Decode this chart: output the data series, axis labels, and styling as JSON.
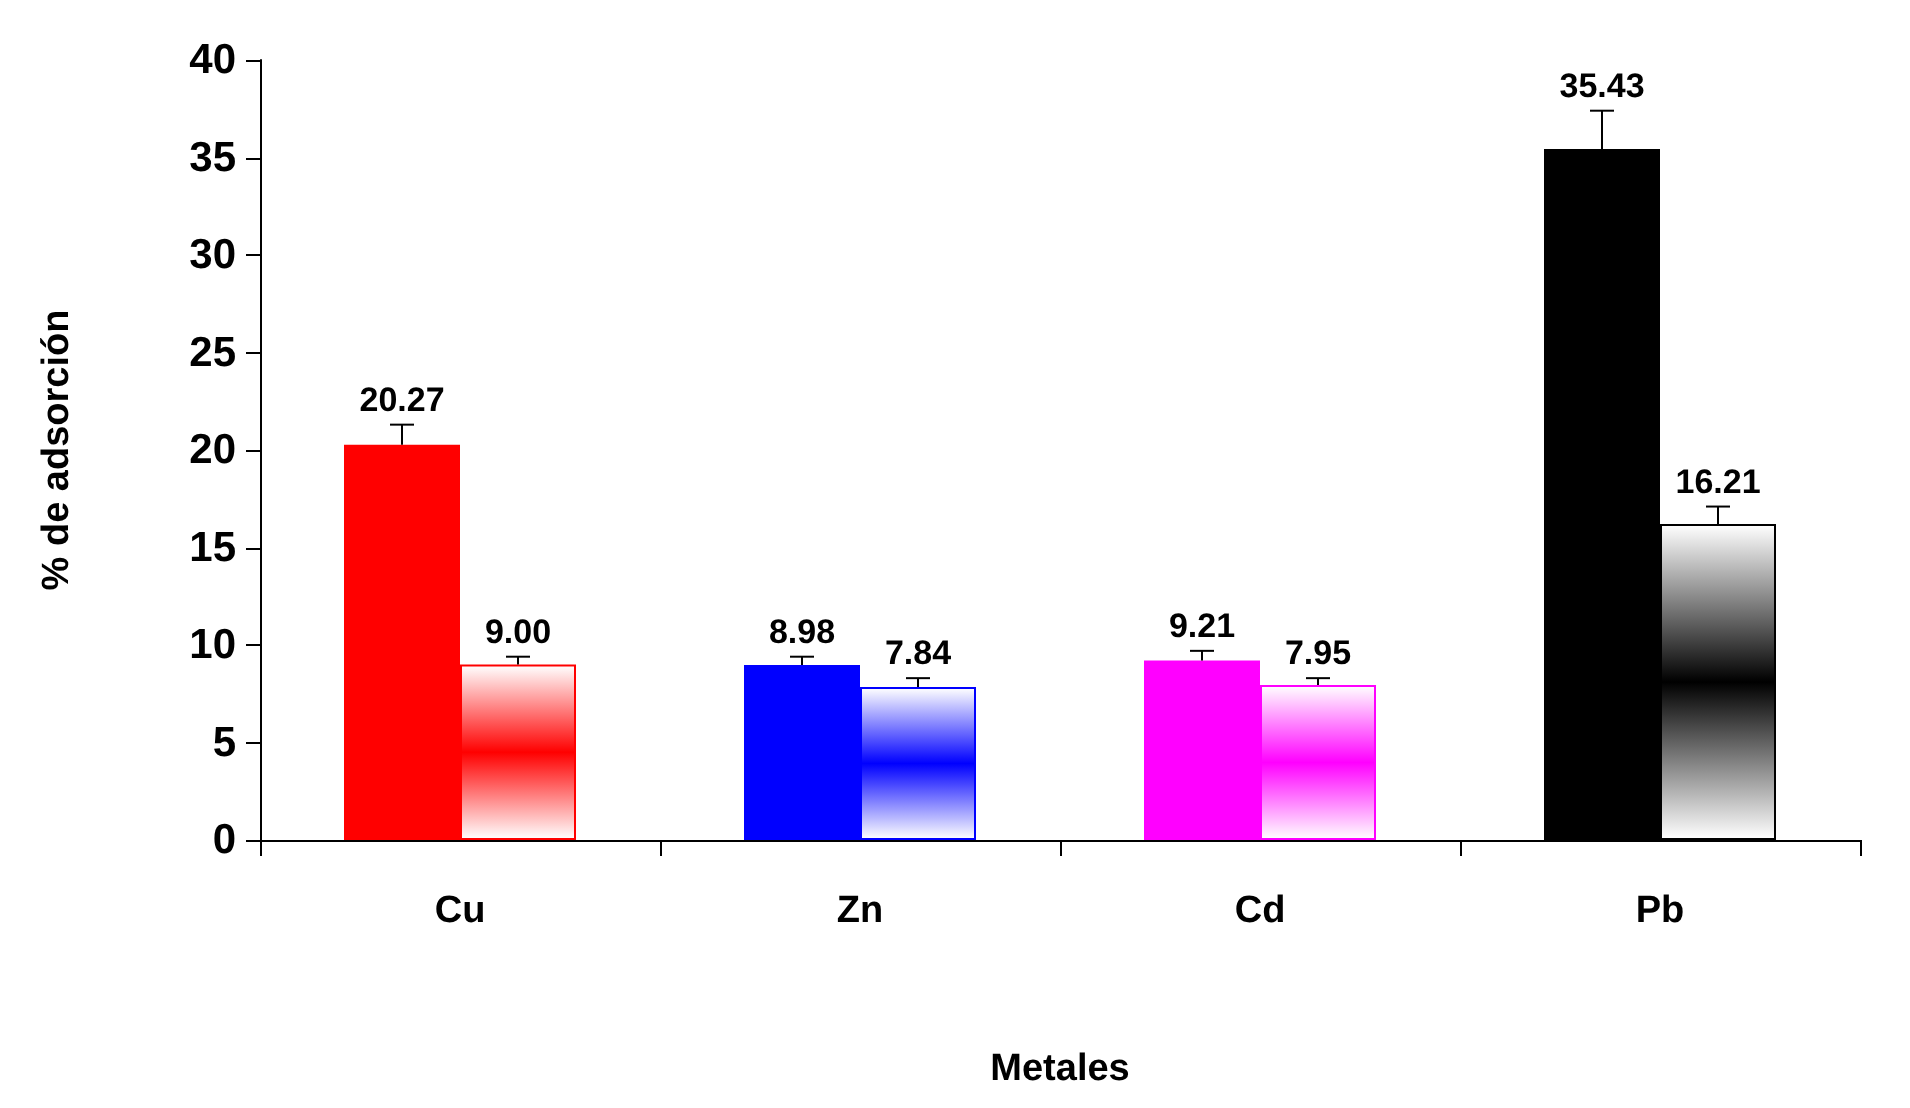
{
  "chart_data": {
    "type": "bar",
    "xlabel": "Metales",
    "ylabel": "% de adsorción",
    "categories": [
      "Cu",
      "Zn",
      "Cd",
      "Pb"
    ],
    "series": [
      {
        "colors": [
          "#ff0000",
          "#0000ff",
          "#ff00ff",
          "#000000"
        ],
        "values": [
          20.27,
          8.98,
          9.21,
          35.43
        ],
        "value_labels": [
          "20.27",
          "8.98",
          "9.21",
          "35.43"
        ],
        "errors": [
          [
            20.27,
            21.3
          ],
          [
            8.98,
            9.4
          ],
          [
            9.21,
            9.7
          ],
          [
            35.43,
            37.4
          ]
        ]
      },
      {
        "colors": [
          "#ff0000",
          "#0000ff",
          "#ff00ff",
          "#000000"
        ],
        "values": [
          9.0,
          7.84,
          7.95,
          16.21
        ],
        "value_labels": [
          "9.00",
          "7.84",
          "7.95",
          "16.21"
        ],
        "errors": [
          [
            9.0,
            9.4
          ],
          [
            7.84,
            8.3
          ],
          [
            7.95,
            8.3
          ],
          [
            16.21,
            17.1
          ]
        ]
      }
    ],
    "grid": false,
    "ylim": [
      0,
      40
    ],
    "yticks": [
      0,
      5,
      10,
      15,
      20,
      25,
      30,
      35,
      40
    ]
  }
}
